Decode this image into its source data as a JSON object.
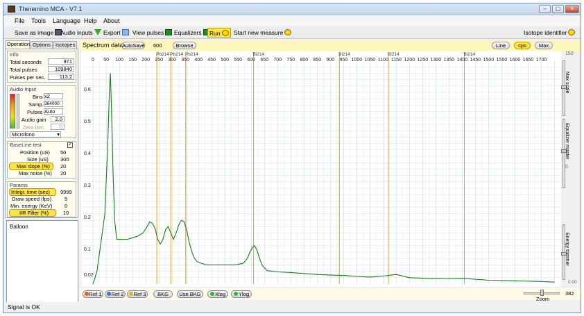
{
  "window": {
    "title": "Theremino MCA - V7.1",
    "btn_min": "–",
    "btn_max": "▢",
    "btn_close": "✕"
  },
  "menu": [
    "File",
    "Tools",
    "Language",
    "Help",
    "About"
  ],
  "toolbar": {
    "save_image": "Save as image",
    "audio_inputs": "Audio inputs",
    "export": "Export",
    "view_pulses": "View pulses",
    "equalizers": "Equalizers",
    "run": "Run",
    "start_new": "Start new measure",
    "isotope_identifier": "Isotope identifier"
  },
  "tabs": [
    "Operation",
    "Options",
    "Isotopes"
  ],
  "info": {
    "title": "Info",
    "total_seconds_label": "Total seconds",
    "total_seconds": "971",
    "total_pulses_label": "Total pulses",
    "total_pulses": "109840",
    "pps_label": "Pulses per sec.",
    "pps": "113.2"
  },
  "audio_input": {
    "title": "Audio Input",
    "bins_label": "Bins",
    "bins": "x2",
    "samp_label": "Samp.",
    "samp": "384000",
    "pulses_label": "Pulses",
    "pulses": "Auto",
    "gain_label": "Audio gain",
    "gain": "2.0",
    "zero_label": "Zero trim",
    "zero": "0",
    "device": "Microfono"
  },
  "baseline": {
    "title": "BaseLine test",
    "checkbox": "✓",
    "position_label": "Position (uS)",
    "position": "50",
    "size_label": "Size (uS)",
    "size": "300",
    "slope_label": "Max slope (%)",
    "slope": "20",
    "noise_label": "Max noise (%)",
    "noise": "20"
  },
  "params": {
    "title": "Params",
    "integr_label": "Integr. time (sec)",
    "integr": "9999",
    "draw_label": "Draw speed (fps)",
    "draw": "5",
    "minE_label": "Min. energy (KeV)",
    "minE": "0",
    "iir_label": "IIR Filter (%)",
    "iir": "10"
  },
  "balloon": "Balloon",
  "status": "Signal is OK",
  "spectrum": {
    "title": "Spectrum data",
    "autosave": "AutoSave",
    "autosave_value": "600",
    "browse": "Browse",
    "line": "Line",
    "cps": "cps",
    "max": "Max"
  },
  "sidebar": {
    "top_value": "150",
    "max_scale": "Max scale",
    "equalizer_master": "Equalizer master",
    "mid_value": "0",
    "energy_trimmer": "Energy trimmer",
    "bottom_value": "0.00",
    "zoom_value": "382",
    "zoom_label": "Zoom"
  },
  "bottom": {
    "ref1": "Ref 1",
    "ref2": "Ref 2",
    "ref3": "Ref 3",
    "bkg": "BKG",
    "use_bkg": "Use BKG",
    "xlog": "Xlog",
    "ylog": "Ylog"
  },
  "colors": {
    "curve": "#1a7a1a",
    "marker": "#e0a020",
    "grid": "#c9d9e8",
    "header": "#fff6bd",
    "highlight": "#ffe34a"
  },
  "chart_data": {
    "type": "line",
    "x_ticks": [
      0,
      50,
      100,
      150,
      200,
      250,
      300,
      350,
      400,
      450,
      500,
      550,
      600,
      650,
      700,
      750,
      800,
      850,
      900,
      950,
      1000,
      1050,
      1100,
      1150,
      1200,
      1250,
      1300,
      1350,
      1400,
      1450,
      1500,
      1550,
      1600,
      1650,
      1700
    ],
    "y_ticks": [
      0.02,
      0.1,
      0.2,
      0.3,
      0.4,
      0.5,
      0.6
    ],
    "xlim": [
      -45,
      1775
    ],
    "ylim": [
      0,
      0.7
    ],
    "markers": [
      {
        "label": "Pb214",
        "x": 242
      },
      {
        "label": "Pb214",
        "x": 295
      },
      {
        "label": "Pb214",
        "x": 352
      },
      {
        "label": "Bi214",
        "x": 609
      },
      {
        "label": "Bi214",
        "x": 934
      },
      {
        "label": "Bi214",
        "x": 1120
      },
      {
        "label": "Bi214",
        "x": 1408
      }
    ],
    "series": [
      {
        "x": [
          0,
          15,
          25,
          35,
          45,
          55,
          62,
          66,
          70,
          76,
          82,
          90,
          100,
          115,
          130,
          150,
          170,
          190,
          205,
          215,
          225,
          235,
          245,
          255,
          265,
          275,
          285,
          295,
          305,
          315,
          325,
          335,
          345,
          355,
          365,
          375,
          385,
          395,
          410,
          430,
          460,
          500,
          540,
          570,
          585,
          595,
          605,
          612,
          620,
          630,
          640,
          660,
          700,
          750,
          800,
          850,
          900,
          950,
          1000,
          1050,
          1100,
          1150,
          1200,
          1300,
          1400,
          1500,
          1600,
          1700,
          1750
        ],
        "y": [
          0,
          0.04,
          0.1,
          0.16,
          0.22,
          0.42,
          0.6,
          0.66,
          0.55,
          0.35,
          0.2,
          0.14,
          0.14,
          0.14,
          0.14,
          0.145,
          0.15,
          0.16,
          0.18,
          0.195,
          0.19,
          0.175,
          0.14,
          0.125,
          0.14,
          0.17,
          0.18,
          0.16,
          0.14,
          0.16,
          0.185,
          0.2,
          0.195,
          0.17,
          0.13,
          0.1,
          0.08,
          0.07,
          0.065,
          0.06,
          0.06,
          0.06,
          0.06,
          0.065,
          0.08,
          0.1,
          0.115,
          0.12,
          0.11,
          0.085,
          0.06,
          0.042,
          0.038,
          0.036,
          0.033,
          0.03,
          0.028,
          0.027,
          0.024,
          0.022,
          0.025,
          0.03,
          0.02,
          0.017,
          0.018,
          0.012,
          0.01,
          0.008,
          0.006
        ]
      }
    ]
  }
}
